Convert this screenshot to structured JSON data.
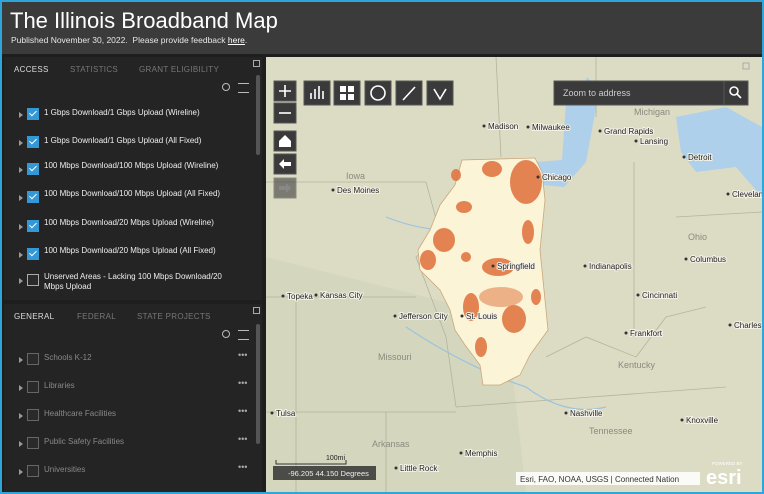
{
  "header": {
    "title": "The Illinois Broadband Map",
    "subtitle": "Published November 30, 2022.  Please provide feedback ",
    "link": "here",
    "end": "."
  },
  "top_panel": {
    "tabs": [
      "ACCESS",
      "STATISTICS",
      "GRANT ELIGIBILITY"
    ],
    "active_tab": 0,
    "layers": [
      {
        "label": "1 Gbps Download/1 Gbps Upload (Wireline)",
        "checked": true
      },
      {
        "label": "1 Gbps Download/1 Gbps Upload (All Fixed)",
        "checked": true
      },
      {
        "label": "100 Mbps Download/100 Mbps Upload (Wireline)",
        "checked": true
      },
      {
        "label": "100 Mbps Download/100 Mbps Upload (All Fixed)",
        "checked": true
      },
      {
        "label": "100 Mbps Download/20 Mbps Upload (Wireline)",
        "checked": true
      },
      {
        "label": "100 Mbps Download/20 Mbps Upload (All Fixed)",
        "checked": true
      },
      {
        "label": "Unserved Areas - Lacking 100 Mbps Download/20 Mbps Upload",
        "checked": false
      }
    ]
  },
  "bottom_panel": {
    "tabs": [
      "GENERAL",
      "FEDERAL",
      "STATE PROJECTS"
    ],
    "active_tab": 0,
    "layers": [
      {
        "label": "Schools K-12",
        "checked": false
      },
      {
        "label": "Libraries",
        "checked": false
      },
      {
        "label": "Healthcare Facilities",
        "checked": false
      },
      {
        "label": "Public Safety Facilities",
        "checked": false
      },
      {
        "label": "Universities",
        "checked": false
      }
    ]
  },
  "map": {
    "search_placeholder": "Zoom to address",
    "coordinates": "-96.205 44.150 Degrees",
    "scale": "100mi",
    "attribution": "Esri, FAO, NOAA, USGS | Connected Nation",
    "logo_caption": "POWERED BY",
    "logo": "esri",
    "places": [
      "Michigan",
      "Madison",
      "Milwaukee",
      "Grand Rapids",
      "Lansing",
      "Detroit",
      "Chicago",
      "Iowa",
      "Des Moines",
      "Cleveland",
      "Ohio",
      "Columbus",
      "Indianapolis",
      "Springfield",
      "Topeka",
      "Kansas City",
      "Cincinnati",
      "Jefferson City",
      "St. Louis",
      "Frankfort",
      "Charleston",
      "Missouri",
      "Kentucky",
      "Nashville",
      "Knoxville",
      "Tennessee",
      "Tulsa",
      "Arkansas",
      "Memphis",
      "Little Rock"
    ]
  }
}
